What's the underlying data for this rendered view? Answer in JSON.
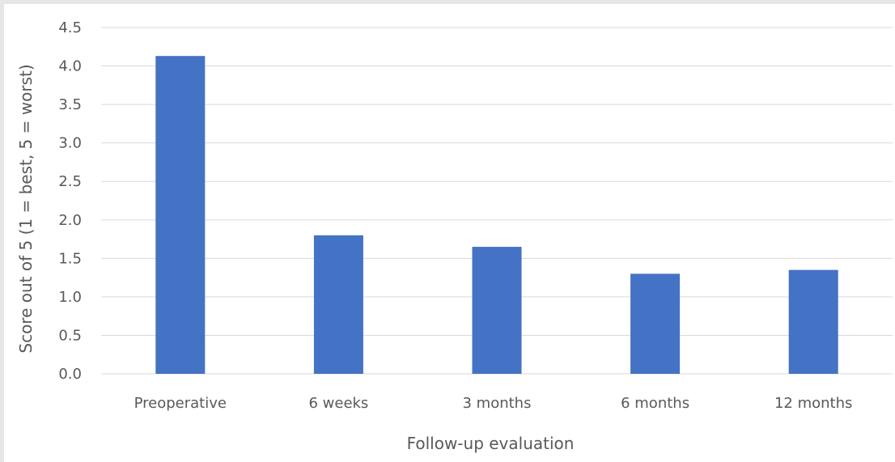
{
  "chart_data": {
    "type": "bar",
    "categories": [
      "Preoperative",
      "6 weeks",
      "3 months",
      "6 months",
      "12 months"
    ],
    "values": [
      4.13,
      1.8,
      1.65,
      1.3,
      1.35
    ],
    "title": "",
    "xlabel": "Follow-up evaluation",
    "ylabel": "Score out of 5 (1 = best, 5 = worst)",
    "ylim": [
      0,
      4.5
    ],
    "yticks": [
      "0.0",
      "0.5",
      "1.0",
      "1.5",
      "2.0",
      "2.5",
      "3.0",
      "3.5",
      "4.0",
      "4.5"
    ],
    "grid": true,
    "bar_color": "#4472c4",
    "grid_color": "#d9d9d9",
    "text_color": "#595959"
  }
}
